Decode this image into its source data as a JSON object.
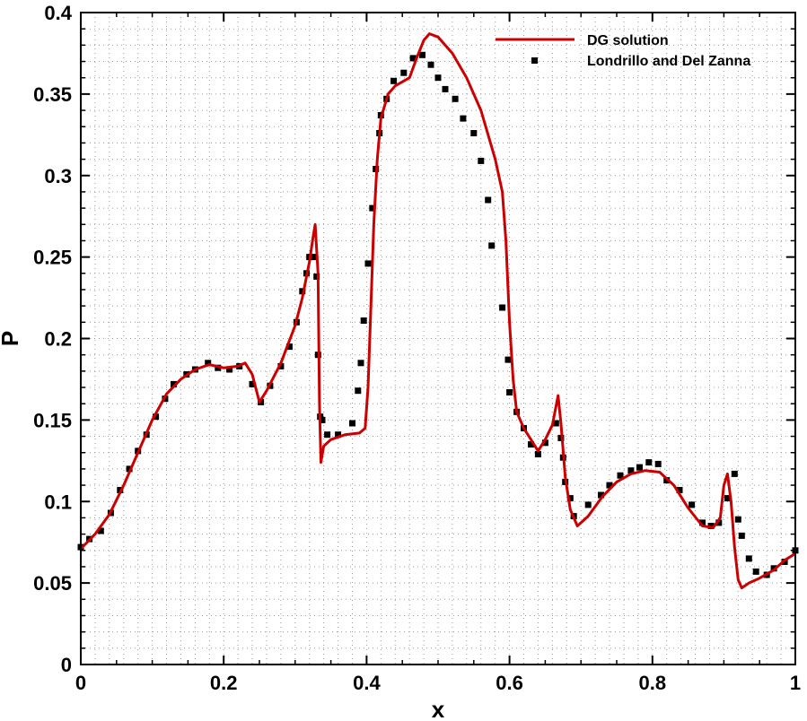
{
  "chart_data": {
    "type": "line",
    "title": "",
    "xlabel": "x",
    "ylabel": "P",
    "xlim": [
      0,
      1
    ],
    "ylim": [
      0,
      0.4
    ],
    "x_ticks": [
      0,
      0.2,
      0.4,
      0.6,
      0.8,
      1
    ],
    "x_tick_labels": [
      "0",
      "0.2",
      "0.4",
      "0.6",
      "0.8",
      "1"
    ],
    "y_ticks": [
      0,
      0.05,
      0.1,
      0.15,
      0.2,
      0.25,
      0.3,
      0.35,
      0.4
    ],
    "y_tick_labels": [
      "0",
      "0.05",
      "0.1",
      "0.15",
      "0.2",
      "0.25",
      "0.3",
      "0.35",
      "0.4"
    ],
    "grid": true,
    "legend_position": "top-right",
    "colors": {
      "line": "#cc0000",
      "markers": "#000000"
    },
    "series": [
      {
        "name": "DG solution",
        "kind": "line",
        "points": [
          [
            0,
            0.071
          ],
          [
            0.02,
            0.08
          ],
          [
            0.04,
            0.092
          ],
          [
            0.06,
            0.11
          ],
          [
            0.08,
            0.13
          ],
          [
            0.1,
            0.15
          ],
          [
            0.12,
            0.166
          ],
          [
            0.14,
            0.175
          ],
          [
            0.16,
            0.181
          ],
          [
            0.18,
            0.184
          ],
          [
            0.2,
            0.182
          ],
          [
            0.22,
            0.183
          ],
          [
            0.23,
            0.185
          ],
          [
            0.24,
            0.178
          ],
          [
            0.25,
            0.161
          ],
          [
            0.26,
            0.168
          ],
          [
            0.28,
            0.185
          ],
          [
            0.3,
            0.208
          ],
          [
            0.31,
            0.225
          ],
          [
            0.32,
            0.247
          ],
          [
            0.325,
            0.262
          ],
          [
            0.328,
            0.27
          ],
          [
            0.332,
            0.24
          ],
          [
            0.334,
            0.16
          ],
          [
            0.336,
            0.124
          ],
          [
            0.34,
            0.134
          ],
          [
            0.35,
            0.138
          ],
          [
            0.37,
            0.141
          ],
          [
            0.39,
            0.142
          ],
          [
            0.398,
            0.145
          ],
          [
            0.402,
            0.17
          ],
          [
            0.406,
            0.22
          ],
          [
            0.41,
            0.27
          ],
          [
            0.415,
            0.31
          ],
          [
            0.42,
            0.335
          ],
          [
            0.43,
            0.35
          ],
          [
            0.44,
            0.355
          ],
          [
            0.46,
            0.36
          ],
          [
            0.47,
            0.372
          ],
          [
            0.48,
            0.383
          ],
          [
            0.488,
            0.387
          ],
          [
            0.5,
            0.385
          ],
          [
            0.52,
            0.375
          ],
          [
            0.54,
            0.36
          ],
          [
            0.56,
            0.34
          ],
          [
            0.58,
            0.31
          ],
          [
            0.59,
            0.29
          ],
          [
            0.595,
            0.26
          ],
          [
            0.6,
            0.21
          ],
          [
            0.605,
            0.175
          ],
          [
            0.61,
            0.155
          ],
          [
            0.62,
            0.145
          ],
          [
            0.63,
            0.138
          ],
          [
            0.64,
            0.131
          ],
          [
            0.65,
            0.138
          ],
          [
            0.66,
            0.147
          ],
          [
            0.668,
            0.165
          ],
          [
            0.672,
            0.148
          ],
          [
            0.678,
            0.115
          ],
          [
            0.685,
            0.095
          ],
          [
            0.695,
            0.085
          ],
          [
            0.71,
            0.091
          ],
          [
            0.73,
            0.103
          ],
          [
            0.75,
            0.112
          ],
          [
            0.77,
            0.117
          ],
          [
            0.79,
            0.119
          ],
          [
            0.81,
            0.118
          ],
          [
            0.83,
            0.11
          ],
          [
            0.85,
            0.096
          ],
          [
            0.87,
            0.085
          ],
          [
            0.885,
            0.084
          ],
          [
            0.895,
            0.09
          ],
          [
            0.9,
            0.11
          ],
          [
            0.905,
            0.117
          ],
          [
            0.91,
            0.1
          ],
          [
            0.915,
            0.072
          ],
          [
            0.92,
            0.052
          ],
          [
            0.925,
            0.047
          ],
          [
            0.935,
            0.05
          ],
          [
            0.95,
            0.053
          ],
          [
            0.97,
            0.058
          ],
          [
            0.985,
            0.064
          ],
          [
            1.0,
            0.068
          ]
        ]
      },
      {
        "name": "Londrillo and Del Zanna",
        "kind": "markers",
        "points": [
          [
            0,
            0.072
          ],
          [
            0.012,
            0.077
          ],
          [
            0.028,
            0.082
          ],
          [
            0.042,
            0.093
          ],
          [
            0.055,
            0.107
          ],
          [
            0.068,
            0.12
          ],
          [
            0.08,
            0.131
          ],
          [
            0.092,
            0.141
          ],
          [
            0.105,
            0.152
          ],
          [
            0.118,
            0.163
          ],
          [
            0.13,
            0.172
          ],
          [
            0.148,
            0.178
          ],
          [
            0.16,
            0.181
          ],
          [
            0.178,
            0.185
          ],
          [
            0.192,
            0.182
          ],
          [
            0.208,
            0.181
          ],
          [
            0.222,
            0.183
          ],
          [
            0.24,
            0.172
          ],
          [
            0.252,
            0.161
          ],
          [
            0.265,
            0.171
          ],
          [
            0.28,
            0.183
          ],
          [
            0.292,
            0.195
          ],
          [
            0.302,
            0.21
          ],
          [
            0.31,
            0.229
          ],
          [
            0.316,
            0.24
          ],
          [
            0.32,
            0.25
          ],
          [
            0.326,
            0.25
          ],
          [
            0.33,
            0.238
          ],
          [
            0.332,
            0.19
          ],
          [
            0.335,
            0.152
          ],
          [
            0.338,
            0.15
          ],
          [
            0.345,
            0.141
          ],
          [
            0.36,
            0.141
          ],
          [
            0.38,
            0.148
          ],
          [
            0.388,
            0.168
          ],
          [
            0.392,
            0.185
          ],
          [
            0.396,
            0.211
          ],
          [
            0.402,
            0.246
          ],
          [
            0.408,
            0.28
          ],
          [
            0.413,
            0.304
          ],
          [
            0.418,
            0.326
          ],
          [
            0.42,
            0.337
          ],
          [
            0.428,
            0.347
          ],
          [
            0.438,
            0.358
          ],
          [
            0.452,
            0.363
          ],
          [
            0.465,
            0.372
          ],
          [
            0.478,
            0.374
          ],
          [
            0.49,
            0.368
          ],
          [
            0.5,
            0.36
          ],
          [
            0.51,
            0.353
          ],
          [
            0.524,
            0.347
          ],
          [
            0.535,
            0.335
          ],
          [
            0.55,
            0.326
          ],
          [
            0.56,
            0.309
          ],
          [
            0.57,
            0.285
          ],
          [
            0.575,
            0.257
          ],
          [
            0.59,
            0.219
          ],
          [
            0.598,
            0.187
          ],
          [
            0.6,
            0.167
          ],
          [
            0.61,
            0.155
          ],
          [
            0.62,
            0.145
          ],
          [
            0.63,
            0.135
          ],
          [
            0.64,
            0.129
          ],
          [
            0.65,
            0.136
          ],
          [
            0.665,
            0.148
          ],
          [
            0.672,
            0.139
          ],
          [
            0.675,
            0.127
          ],
          [
            0.678,
            0.112
          ],
          [
            0.685,
            0.102
          ],
          [
            0.69,
            0.091
          ],
          [
            0.71,
            0.098
          ],
          [
            0.728,
            0.104
          ],
          [
            0.74,
            0.11
          ],
          [
            0.755,
            0.116
          ],
          [
            0.77,
            0.119
          ],
          [
            0.782,
            0.121
          ],
          [
            0.795,
            0.124
          ],
          [
            0.808,
            0.123
          ],
          [
            0.82,
            0.113
          ],
          [
            0.838,
            0.107
          ],
          [
            0.855,
            0.098
          ],
          [
            0.87,
            0.087
          ],
          [
            0.882,
            0.085
          ],
          [
            0.893,
            0.087
          ],
          [
            0.905,
            0.102
          ],
          [
            0.915,
            0.117
          ],
          [
            0.92,
            0.089
          ],
          [
            0.925,
            0.079
          ],
          [
            0.935,
            0.065
          ],
          [
            0.945,
            0.057
          ],
          [
            0.96,
            0.055
          ],
          [
            0.97,
            0.059
          ],
          [
            0.985,
            0.063
          ],
          [
            1.0,
            0.07
          ]
        ]
      }
    ]
  }
}
